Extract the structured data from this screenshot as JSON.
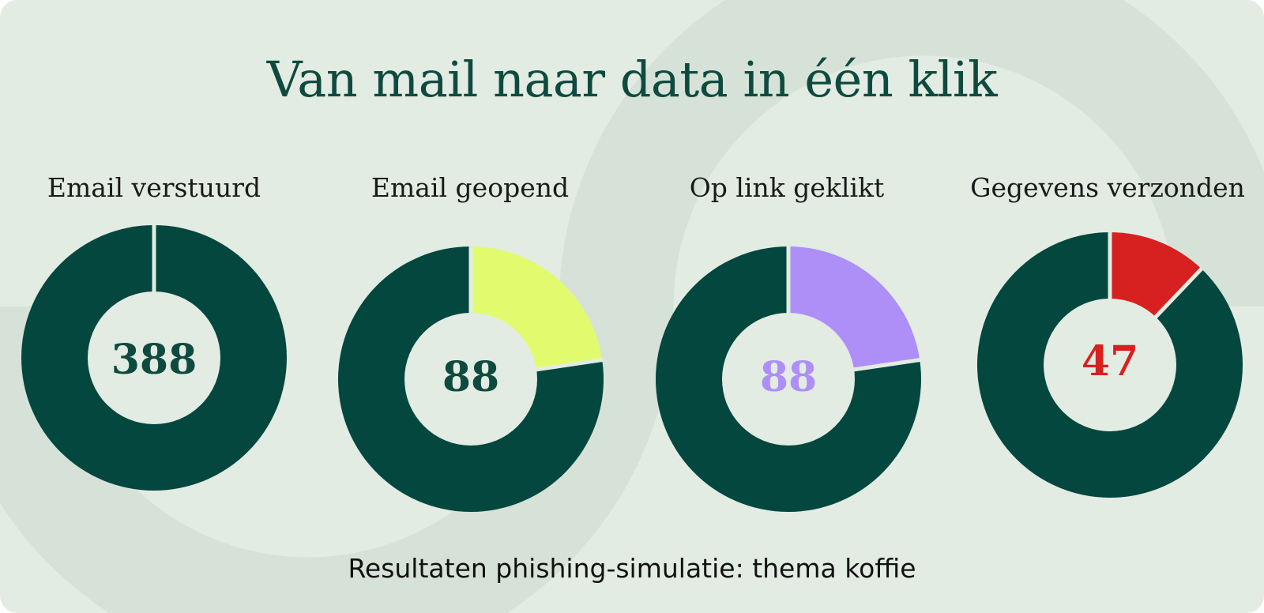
{
  "title": "Van mail naar data in één klik",
  "caption": "Resultaten phishing-simulatie: thema koffie",
  "colors": {
    "background": "#e2ece2",
    "decor": "#d6e2d7",
    "ring": "#03473f",
    "gap": "#e2ece2",
    "title": "#0f4a3f"
  },
  "chart_data": [
    {
      "type": "pie",
      "title": "Email verstuurd",
      "value_label": "388",
      "slices": [
        {
          "value": 388,
          "color": "#03473f"
        }
      ],
      "total": 388,
      "center_color": "#0f4a3f"
    },
    {
      "type": "pie",
      "title": "Email geopend",
      "value_label": "88",
      "slices": [
        {
          "value": 88,
          "color": "#e2fb6e"
        },
        {
          "value": 300,
          "color": "#03473f"
        }
      ],
      "total": 388,
      "center_color": "#0f4a3f"
    },
    {
      "type": "pie",
      "title": "Op link geklikt",
      "value_label": "88",
      "slices": [
        {
          "value": 88,
          "color": "#ae8ff7"
        },
        {
          "value": 300,
          "color": "#03473f"
        }
      ],
      "total": 388,
      "center_color": "#ae8ff7"
    },
    {
      "type": "pie",
      "title": "Gegevens verzonden",
      "value_label": "47",
      "slices": [
        {
          "value": 47,
          "color": "#d72020"
        },
        {
          "value": 341,
          "color": "#03473f"
        }
      ],
      "total": 388,
      "center_color": "#d72020"
    }
  ]
}
